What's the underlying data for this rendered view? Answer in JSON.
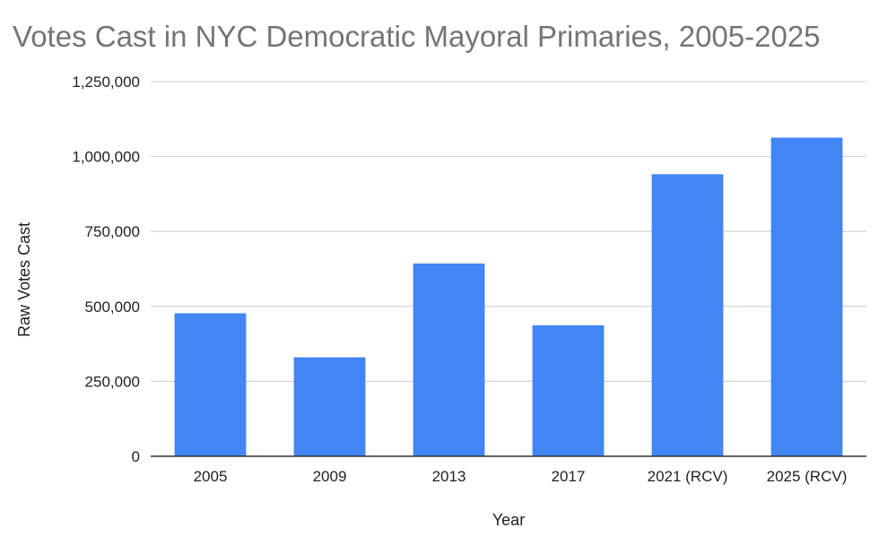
{
  "chart_data": {
    "type": "bar",
    "title": "Votes Cast in NYC Democratic Mayoral Primaries, 2005-2025",
    "xlabel": "Year",
    "ylabel": "Raw Votes Cast",
    "categories": [
      "2005",
      "2009",
      "2013",
      "2017",
      "2021 (RCV)",
      "2025 (RCV)"
    ],
    "values": [
      477000,
      330000,
      643000,
      437000,
      941000,
      1063000
    ],
    "ylim": [
      0,
      1250000
    ],
    "yticks": [
      0,
      250000,
      500000,
      750000,
      1000000,
      1250000
    ],
    "ytick_labels": [
      "0",
      "250,000",
      "500,000",
      "750,000",
      "1,000,000",
      "1,250,000"
    ],
    "grid": true,
    "legend": "none",
    "bar_color": "#4285f4",
    "grid_color": "#cccccc",
    "axis_color": "#333333"
  }
}
